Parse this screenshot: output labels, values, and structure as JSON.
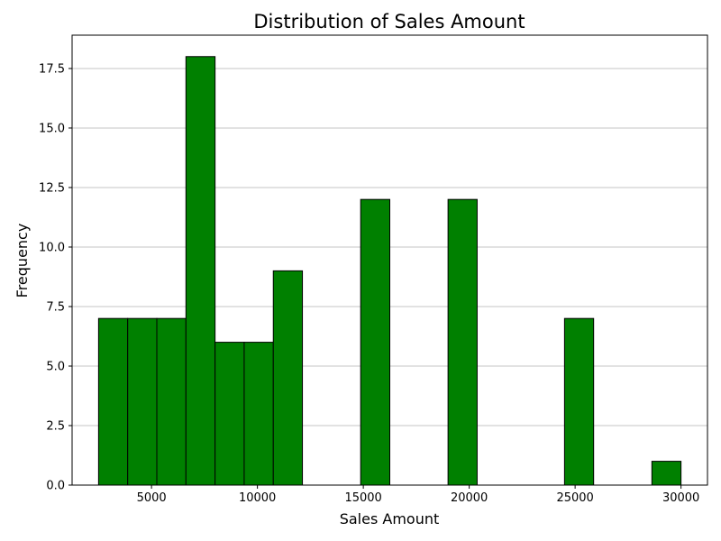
{
  "chart_data": {
    "type": "bar",
    "subtype": "histogram",
    "title": "Distribution of Sales Amount",
    "xlabel": "Sales Amount",
    "ylabel": "Frequency",
    "xlim": [
      1250,
      31250
    ],
    "ylim": [
      0,
      18.9
    ],
    "xticks": [
      5000,
      10000,
      15000,
      20000,
      25000,
      30000
    ],
    "yticks": [
      0.0,
      2.5,
      5.0,
      7.5,
      10.0,
      12.5,
      15.0,
      17.5
    ],
    "ytick_labels": [
      "0.0",
      "2.5",
      "5.0",
      "7.5",
      "10.0",
      "12.5",
      "15.0",
      "17.5"
    ],
    "grid": "y-major",
    "bar_color": "#008000",
    "edge_color": "#000000",
    "bins": [
      {
        "start": 2500,
        "end": 3875,
        "count": 7
      },
      {
        "start": 3875,
        "end": 5250,
        "count": 7
      },
      {
        "start": 5250,
        "end": 6625,
        "count": 7
      },
      {
        "start": 6625,
        "end": 8000,
        "count": 18
      },
      {
        "start": 8000,
        "end": 9375,
        "count": 6
      },
      {
        "start": 9375,
        "end": 10750,
        "count": 6
      },
      {
        "start": 10750,
        "end": 12125,
        "count": 9
      },
      {
        "start": 12125,
        "end": 13500,
        "count": 0
      },
      {
        "start": 13500,
        "end": 14875,
        "count": 0
      },
      {
        "start": 14875,
        "end": 16250,
        "count": 12
      },
      {
        "start": 16250,
        "end": 17625,
        "count": 0
      },
      {
        "start": 17625,
        "end": 19000,
        "count": 0
      },
      {
        "start": 19000,
        "end": 20375,
        "count": 12
      },
      {
        "start": 20375,
        "end": 21750,
        "count": 0
      },
      {
        "start": 21750,
        "end": 23125,
        "count": 0
      },
      {
        "start": 23125,
        "end": 24500,
        "count": 0
      },
      {
        "start": 24500,
        "end": 25875,
        "count": 7
      },
      {
        "start": 25875,
        "end": 27250,
        "count": 0
      },
      {
        "start": 27250,
        "end": 28625,
        "count": 0
      },
      {
        "start": 28625,
        "end": 30000,
        "count": 1
      }
    ]
  }
}
